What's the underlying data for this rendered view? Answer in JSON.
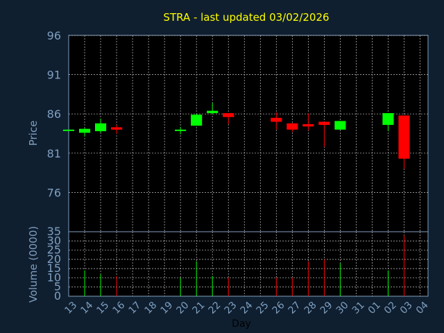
{
  "chart_data": {
    "type": "candlestick",
    "title": "STRA - last updated 03/02/2026",
    "xlabel": "Day",
    "ylabel_price": "Price",
    "ylabel_volume": "Volume (0000)",
    "price_ylim": [
      71,
      96
    ],
    "price_ticks": [
      "96",
      "91",
      "86",
      "81",
      "76"
    ],
    "volume_ylim": [
      0,
      35
    ],
    "volume_ticks": [
      "35",
      "30",
      "25",
      "20",
      "15",
      "10",
      "5",
      "0"
    ],
    "x_labels": [
      "13",
      "14",
      "15",
      "16",
      "17",
      "18",
      "19",
      "20",
      "21",
      "22",
      "23",
      "24",
      "25",
      "26",
      "27",
      "28",
      "29",
      "30",
      "31",
      "01",
      "02",
      "03",
      "04"
    ],
    "grid": true,
    "colors": {
      "up": "#00ff00",
      "down": "#ff0000",
      "background": "#0f1f30",
      "panel": "#000000",
      "grid": "#c8c8c8",
      "title": "#ffff00",
      "axis_text": "#7f9fbf"
    },
    "candles": [
      {
        "day": "13",
        "open": 84.0,
        "high": 84.0,
        "low": 84.0,
        "close": 84.0,
        "volume": 0
      },
      {
        "day": "14",
        "open": 83.6,
        "high": 84.2,
        "low": 83.1,
        "close": 84.1,
        "volume": 14
      },
      {
        "day": "15",
        "open": 83.8,
        "high": 85.4,
        "low": 83.6,
        "close": 84.8,
        "volume": 12
      },
      {
        "day": "16",
        "open": 84.3,
        "high": 84.6,
        "low": 83.5,
        "close": 84.0,
        "volume": 11
      },
      {
        "day": "20",
        "open": 83.9,
        "high": 84.3,
        "low": 83.4,
        "close": 84.0,
        "volume": 10
      },
      {
        "day": "21",
        "open": 84.5,
        "high": 86.0,
        "low": 84.5,
        "close": 85.9,
        "volume": 19
      },
      {
        "day": "22",
        "open": 86.1,
        "high": 87.4,
        "low": 86.0,
        "close": 86.4,
        "volume": 11
      },
      {
        "day": "23",
        "open": 86.1,
        "high": 86.1,
        "low": 84.7,
        "close": 85.6,
        "volume": 10
      },
      {
        "day": "26",
        "open": 85.5,
        "high": 86.2,
        "low": 84.0,
        "close": 85.0,
        "volume": 10
      },
      {
        "day": "27",
        "open": 84.8,
        "high": 84.8,
        "low": 83.7,
        "close": 84.0,
        "volume": 10
      },
      {
        "day": "28",
        "open": 84.7,
        "high": 86.1,
        "low": 83.9,
        "close": 84.4,
        "volume": 19
      },
      {
        "day": "29",
        "open": 85.0,
        "high": 85.0,
        "low": 81.8,
        "close": 84.6,
        "volume": 20
      },
      {
        "day": "30",
        "open": 84.0,
        "high": 85.1,
        "low": 84.0,
        "close": 85.1,
        "volume": 18
      },
      {
        "day": "02",
        "open": 84.6,
        "high": 86.1,
        "low": 83.8,
        "close": 86.1,
        "volume": 14
      },
      {
        "day": "03",
        "open": 85.8,
        "high": 85.8,
        "low": 79.0,
        "close": 80.3,
        "volume": 33
      }
    ]
  }
}
